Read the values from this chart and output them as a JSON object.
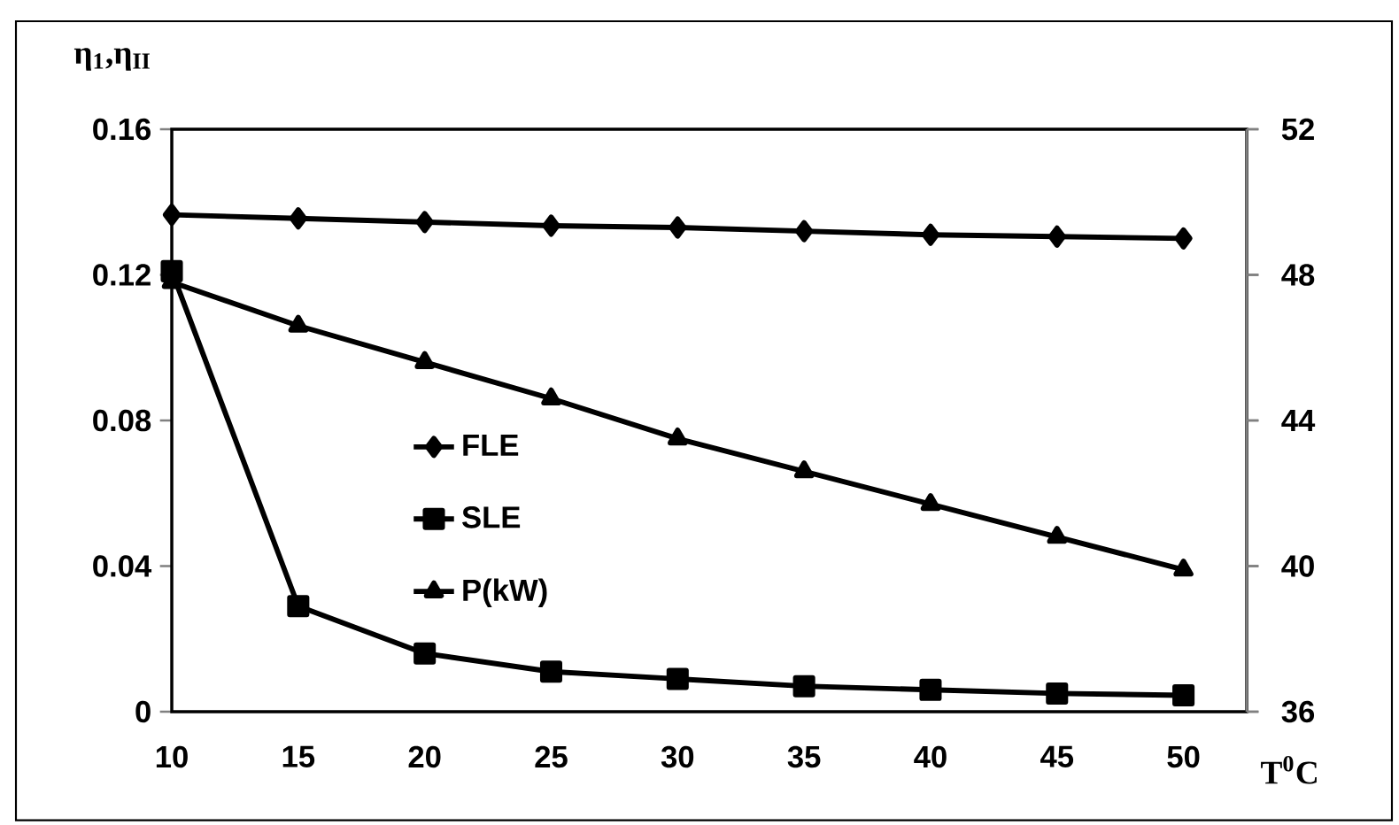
{
  "chart_data": {
    "type": "line",
    "xlabel": "T$^{0}$C",
    "ylabel": "η$_{1}$,η$_{II}$",
    "x": [
      10,
      15,
      20,
      25,
      30,
      35,
      40,
      45,
      50
    ],
    "xlim": [
      10,
      52.5
    ],
    "xticks": [
      10,
      15,
      20,
      25,
      30,
      35,
      40,
      45,
      50
    ],
    "ylim": [
      0,
      0.16
    ],
    "yticks": [
      0,
      0.04,
      0.08,
      0.12,
      0.16
    ],
    "y2lim": [
      36,
      52
    ],
    "y2ticks": [
      36,
      40,
      44,
      48,
      52
    ],
    "legend": "left",
    "grid": false,
    "series": [
      {
        "name": "FLE",
        "color": "#000000",
        "marker": "diamond",
        "values": [
          0.1365,
          0.1355,
          0.1345,
          0.1335,
          0.133,
          0.132,
          0.131,
          0.1305,
          0.13
        ]
      },
      {
        "name": "SLE",
        "color": "#000000",
        "marker": "square",
        "values": [
          0.121,
          0.029,
          0.016,
          0.011,
          0.009,
          0.007,
          0.006,
          0.005,
          0.0045
        ]
      },
      {
        "name": "P(kW)",
        "color": "#000000",
        "marker": "triangle",
        "axis": "y2",
        "values": [
          47.8,
          46.6,
          45.6,
          44.6,
          43.5,
          42.6,
          41.7,
          40.8,
          39.9
        ]
      }
    ]
  }
}
